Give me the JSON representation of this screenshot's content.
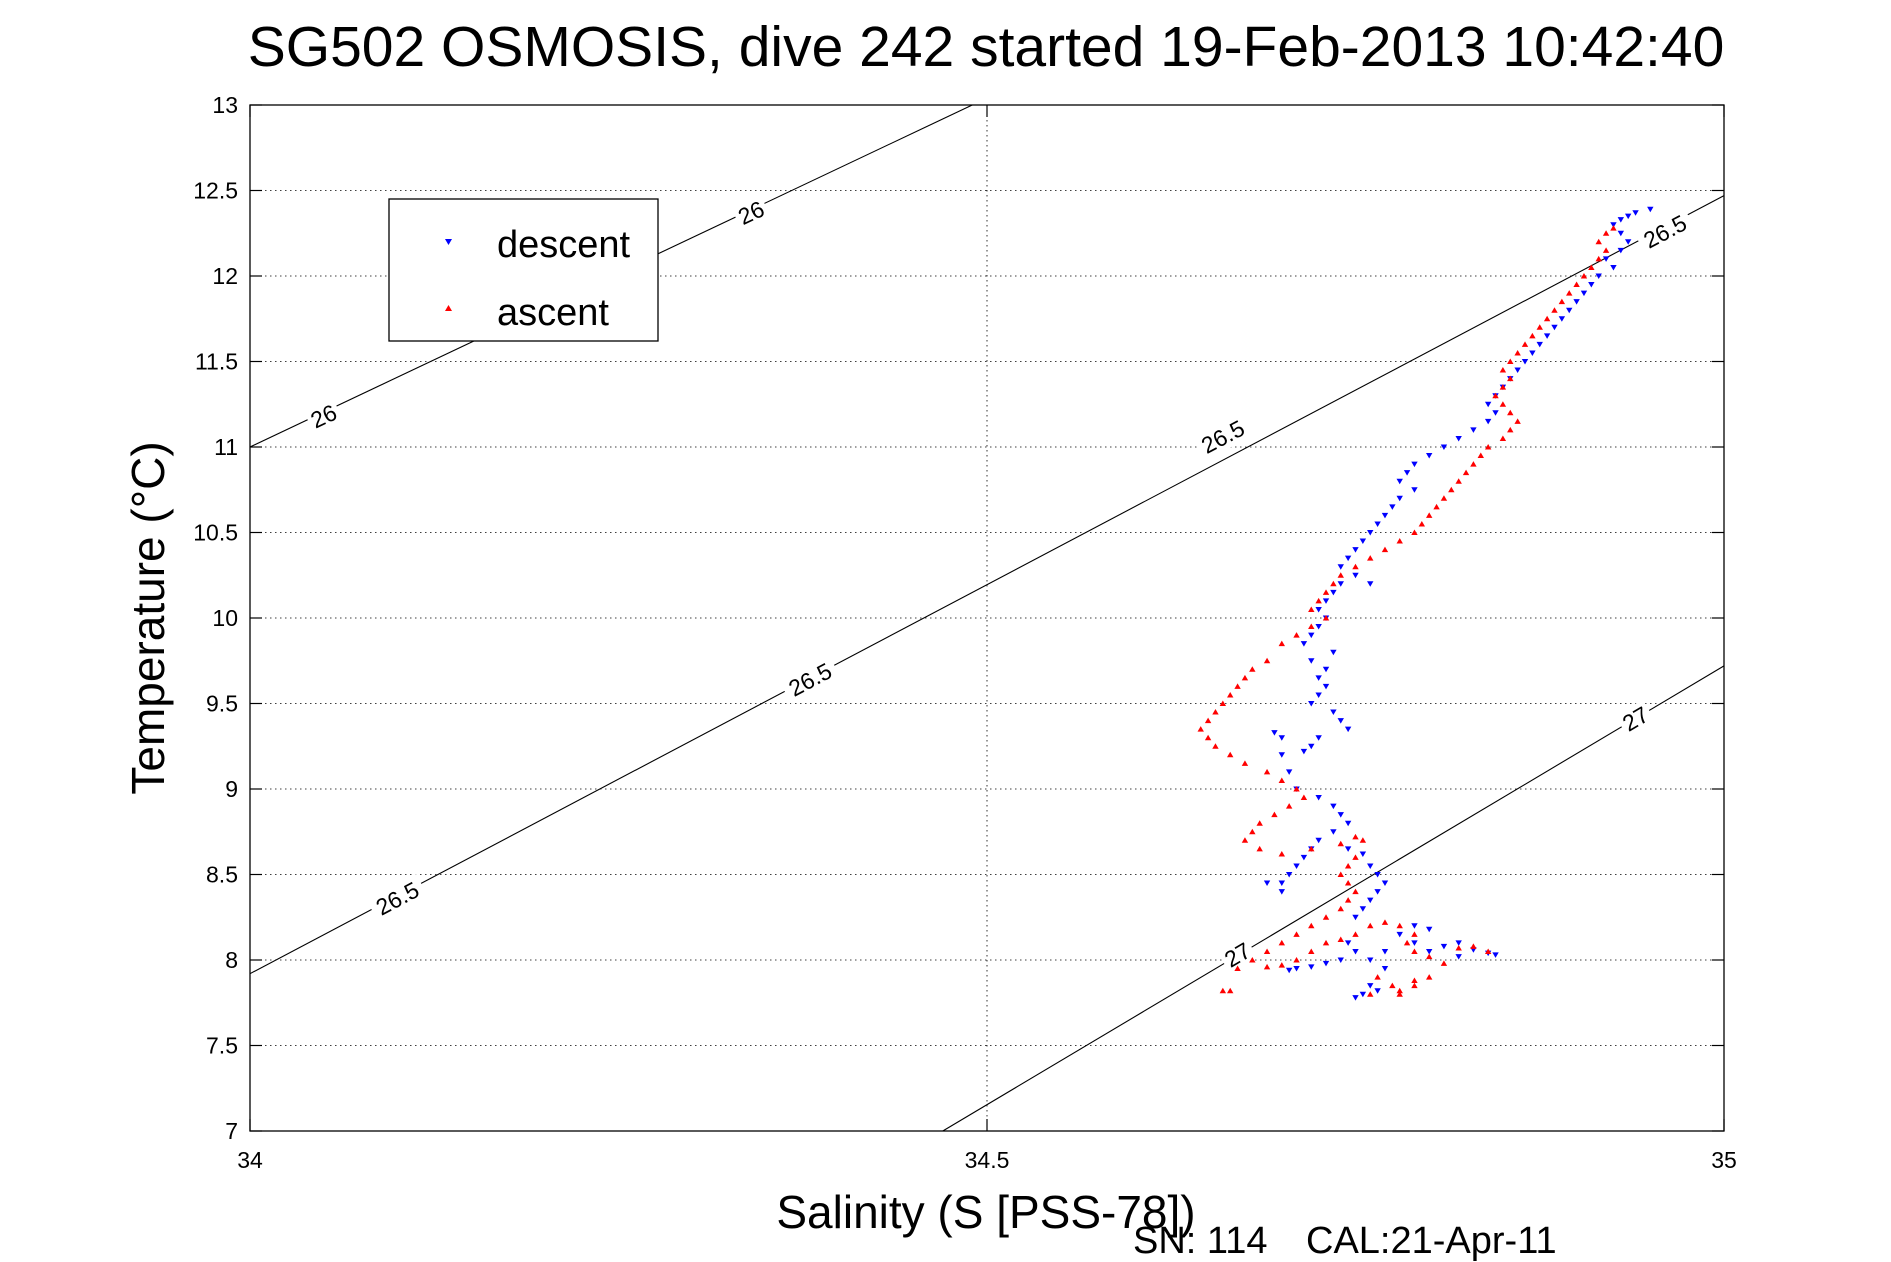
{
  "footer": {
    "serial": "SN: 114",
    "calibration": "CAL:21-Apr-11"
  },
  "chart_data": {
    "type": "scatter",
    "title": "SG502 OSMOSIS, dive 242 started 19-Feb-2013 10:42:40",
    "xlabel": "Salinity (S [PSS-78])",
    "ylabel": "Temperature (°C)",
    "xlim": [
      34,
      35
    ],
    "ylim": [
      7,
      13
    ],
    "x_ticks": [
      34,
      34.5,
      35
    ],
    "y_ticks": [
      7,
      7.5,
      8,
      8.5,
      9,
      9.5,
      10,
      10.5,
      11,
      11.5,
      12,
      12.5,
      13
    ],
    "x_tick_labels": [
      "34",
      "34.5",
      "35"
    ],
    "y_tick_labels": [
      "7",
      "7.5",
      "8",
      "8.5",
      "9",
      "9.5",
      "10",
      "10.5",
      "11",
      "11.5",
      "12",
      "12.5",
      "13"
    ],
    "grid": true,
    "legend_position": "top-left",
    "contours": [
      {
        "label": "26",
        "x": [
          34,
          34.49
        ],
        "y": [
          11.0,
          13.0
        ],
        "labels_at": [
          [
            34.05,
            11.18
          ],
          [
            34.34,
            12.37
          ]
        ]
      },
      {
        "label": "26.5",
        "x": [
          34,
          35
        ],
        "y": [
          7.92,
          12.47
        ],
        "labels_at": [
          [
            34.1,
            8.36
          ],
          [
            34.38,
            9.64
          ],
          [
            34.66,
            11.06
          ],
          [
            34.96,
            12.26
          ]
        ]
      },
      {
        "label": "27",
        "x": [
          34.47,
          35
        ],
        "y": [
          7.0,
          9.72
        ],
        "labels_at": [
          [
            34.67,
            8.03
          ],
          [
            34.94,
            9.41
          ]
        ]
      }
    ],
    "series": [
      {
        "name": "descent",
        "color": "#0000ff",
        "marker": "triangle-down",
        "points": [
          [
            34.95,
            12.39
          ],
          [
            34.94,
            12.37
          ],
          [
            34.935,
            12.35
          ],
          [
            34.93,
            12.33
          ],
          [
            34.925,
            12.3
          ],
          [
            34.93,
            12.25
          ],
          [
            34.935,
            12.2
          ],
          [
            34.93,
            12.15
          ],
          [
            34.92,
            12.1
          ],
          [
            34.925,
            12.05
          ],
          [
            34.915,
            12.0
          ],
          [
            34.91,
            11.95
          ],
          [
            34.905,
            11.9
          ],
          [
            34.9,
            11.85
          ],
          [
            34.895,
            11.8
          ],
          [
            34.89,
            11.75
          ],
          [
            34.885,
            11.7
          ],
          [
            34.88,
            11.65
          ],
          [
            34.875,
            11.6
          ],
          [
            34.87,
            11.55
          ],
          [
            34.865,
            11.5
          ],
          [
            34.86,
            11.45
          ],
          [
            34.855,
            11.4
          ],
          [
            34.85,
            11.35
          ],
          [
            34.845,
            11.3
          ],
          [
            34.84,
            11.25
          ],
          [
            34.845,
            11.2
          ],
          [
            34.84,
            11.15
          ],
          [
            34.83,
            11.1
          ],
          [
            34.82,
            11.05
          ],
          [
            34.81,
            11.0
          ],
          [
            34.8,
            10.95
          ],
          [
            34.79,
            10.9
          ],
          [
            34.785,
            10.85
          ],
          [
            34.78,
            10.8
          ],
          [
            34.79,
            10.75
          ],
          [
            34.78,
            10.7
          ],
          [
            34.775,
            10.65
          ],
          [
            34.77,
            10.6
          ],
          [
            34.765,
            10.55
          ],
          [
            34.76,
            10.5
          ],
          [
            34.755,
            10.45
          ],
          [
            34.75,
            10.4
          ],
          [
            34.745,
            10.35
          ],
          [
            34.74,
            10.3
          ],
          [
            34.75,
            10.25
          ],
          [
            34.74,
            10.2
          ],
          [
            34.735,
            10.15
          ],
          [
            34.73,
            10.1
          ],
          [
            34.725,
            10.05
          ],
          [
            34.76,
            10.2
          ],
          [
            34.73,
            10.0
          ],
          [
            34.725,
            9.95
          ],
          [
            34.72,
            9.9
          ],
          [
            34.715,
            9.85
          ],
          [
            34.735,
            9.8
          ],
          [
            34.72,
            9.75
          ],
          [
            34.73,
            9.7
          ],
          [
            34.725,
            9.65
          ],
          [
            34.73,
            9.6
          ],
          [
            34.725,
            9.55
          ],
          [
            34.72,
            9.5
          ],
          [
            34.735,
            9.45
          ],
          [
            34.74,
            9.4
          ],
          [
            34.745,
            9.35
          ],
          [
            34.725,
            9.3
          ],
          [
            34.72,
            9.25
          ],
          [
            34.715,
            9.22
          ],
          [
            34.7,
            9.3
          ],
          [
            34.695,
            9.33
          ],
          [
            34.7,
            9.2
          ],
          [
            34.705,
            9.1
          ],
          [
            34.71,
            9.0
          ],
          [
            34.725,
            8.95
          ],
          [
            34.735,
            8.9
          ],
          [
            34.74,
            8.85
          ],
          [
            34.745,
            8.8
          ],
          [
            34.735,
            8.75
          ],
          [
            34.725,
            8.7
          ],
          [
            34.72,
            8.65
          ],
          [
            34.715,
            8.6
          ],
          [
            34.71,
            8.55
          ],
          [
            34.705,
            8.5
          ],
          [
            34.7,
            8.45
          ],
          [
            34.69,
            8.45
          ],
          [
            34.7,
            8.4
          ],
          [
            34.745,
            8.65
          ],
          [
            34.755,
            8.62
          ],
          [
            34.76,
            8.55
          ],
          [
            34.765,
            8.5
          ],
          [
            34.77,
            8.45
          ],
          [
            34.765,
            8.4
          ],
          [
            34.76,
            8.35
          ],
          [
            34.755,
            8.3
          ],
          [
            34.75,
            8.25
          ],
          [
            34.75,
            8.05
          ],
          [
            34.745,
            8.1
          ],
          [
            34.74,
            8.0
          ],
          [
            34.73,
            7.98
          ],
          [
            34.72,
            7.96
          ],
          [
            34.71,
            7.95
          ],
          [
            34.705,
            7.94
          ],
          [
            34.76,
            8.0
          ],
          [
            34.77,
            8.05
          ],
          [
            34.78,
            8.15
          ],
          [
            34.79,
            8.2
          ],
          [
            34.8,
            8.18
          ],
          [
            34.79,
            8.1
          ],
          [
            34.8,
            8.05
          ],
          [
            34.81,
            8.08
          ],
          [
            34.82,
            8.1
          ],
          [
            34.83,
            8.06
          ],
          [
            34.84,
            8.04
          ],
          [
            34.845,
            8.03
          ],
          [
            34.82,
            8.02
          ],
          [
            34.77,
            7.95
          ],
          [
            34.76,
            7.85
          ],
          [
            34.755,
            7.8
          ],
          [
            34.75,
            7.78
          ],
          [
            34.765,
            7.82
          ]
        ]
      },
      {
        "name": "ascent",
        "color": "#ff0000",
        "marker": "triangle-up",
        "points": [
          [
            34.925,
            12.28
          ],
          [
            34.92,
            12.25
          ],
          [
            34.915,
            12.2
          ],
          [
            34.92,
            12.15
          ],
          [
            34.915,
            12.1
          ],
          [
            34.91,
            12.05
          ],
          [
            34.905,
            12.0
          ],
          [
            34.9,
            11.95
          ],
          [
            34.895,
            11.9
          ],
          [
            34.89,
            11.85
          ],
          [
            34.885,
            11.8
          ],
          [
            34.88,
            11.75
          ],
          [
            34.875,
            11.7
          ],
          [
            34.87,
            11.65
          ],
          [
            34.865,
            11.6
          ],
          [
            34.86,
            11.55
          ],
          [
            34.855,
            11.5
          ],
          [
            34.85,
            11.45
          ],
          [
            34.855,
            11.4
          ],
          [
            34.85,
            11.35
          ],
          [
            34.845,
            11.3
          ],
          [
            34.85,
            11.25
          ],
          [
            34.855,
            11.2
          ],
          [
            34.86,
            11.15
          ],
          [
            34.855,
            11.1
          ],
          [
            34.85,
            11.05
          ],
          [
            34.84,
            11.0
          ],
          [
            34.835,
            10.95
          ],
          [
            34.83,
            10.9
          ],
          [
            34.825,
            10.85
          ],
          [
            34.82,
            10.8
          ],
          [
            34.815,
            10.75
          ],
          [
            34.81,
            10.7
          ],
          [
            34.805,
            10.65
          ],
          [
            34.8,
            10.6
          ],
          [
            34.795,
            10.55
          ],
          [
            34.79,
            10.5
          ],
          [
            34.78,
            10.45
          ],
          [
            34.77,
            10.4
          ],
          [
            34.76,
            10.35
          ],
          [
            34.75,
            10.3
          ],
          [
            34.74,
            10.25
          ],
          [
            34.735,
            10.2
          ],
          [
            34.73,
            10.15
          ],
          [
            34.725,
            10.1
          ],
          [
            34.72,
            10.05
          ],
          [
            34.73,
            10.0
          ],
          [
            34.72,
            9.95
          ],
          [
            34.71,
            9.9
          ],
          [
            34.7,
            9.85
          ],
          [
            34.69,
            9.75
          ],
          [
            34.68,
            9.7
          ],
          [
            34.675,
            9.65
          ],
          [
            34.67,
            9.6
          ],
          [
            34.665,
            9.55
          ],
          [
            34.66,
            9.5
          ],
          [
            34.655,
            9.45
          ],
          [
            34.65,
            9.4
          ],
          [
            34.645,
            9.35
          ],
          [
            34.65,
            9.3
          ],
          [
            34.655,
            9.25
          ],
          [
            34.665,
            9.2
          ],
          [
            34.675,
            9.15
          ],
          [
            34.69,
            9.1
          ],
          [
            34.7,
            9.05
          ],
          [
            34.71,
            9.0
          ],
          [
            34.715,
            8.95
          ],
          [
            34.705,
            8.9
          ],
          [
            34.695,
            8.85
          ],
          [
            34.685,
            8.8
          ],
          [
            34.68,
            8.75
          ],
          [
            34.675,
            8.7
          ],
          [
            34.685,
            8.65
          ],
          [
            34.7,
            8.62
          ],
          [
            34.72,
            8.65
          ],
          [
            34.74,
            8.68
          ],
          [
            34.75,
            8.72
          ],
          [
            34.755,
            8.7
          ],
          [
            34.75,
            8.6
          ],
          [
            34.745,
            8.55
          ],
          [
            34.74,
            8.5
          ],
          [
            34.745,
            8.45
          ],
          [
            34.75,
            8.4
          ],
          [
            34.745,
            8.35
          ],
          [
            34.74,
            8.3
          ],
          [
            34.73,
            8.25
          ],
          [
            34.72,
            8.2
          ],
          [
            34.71,
            8.15
          ],
          [
            34.7,
            8.1
          ],
          [
            34.69,
            8.05
          ],
          [
            34.68,
            8.0
          ],
          [
            34.67,
            7.95
          ],
          [
            34.66,
            7.82
          ],
          [
            34.665,
            7.82
          ],
          [
            34.69,
            7.96
          ],
          [
            34.7,
            7.97
          ],
          [
            34.71,
            8.0
          ],
          [
            34.72,
            8.05
          ],
          [
            34.73,
            8.1
          ],
          [
            34.74,
            8.12
          ],
          [
            34.75,
            8.15
          ],
          [
            34.76,
            8.2
          ],
          [
            34.77,
            8.22
          ],
          [
            34.78,
            8.2
          ],
          [
            34.79,
            8.15
          ],
          [
            34.785,
            8.1
          ],
          [
            34.79,
            8.05
          ],
          [
            34.8,
            8.02
          ],
          [
            34.81,
            7.98
          ],
          [
            34.8,
            7.9
          ],
          [
            34.79,
            7.85
          ],
          [
            34.78,
            7.82
          ],
          [
            34.775,
            7.85
          ],
          [
            34.765,
            7.9
          ],
          [
            34.76,
            7.8
          ],
          [
            34.78,
            7.8
          ],
          [
            34.82,
            8.07
          ],
          [
            34.83,
            8.08
          ],
          [
            34.84,
            8.05
          ],
          [
            34.79,
            7.88
          ]
        ]
      }
    ]
  }
}
